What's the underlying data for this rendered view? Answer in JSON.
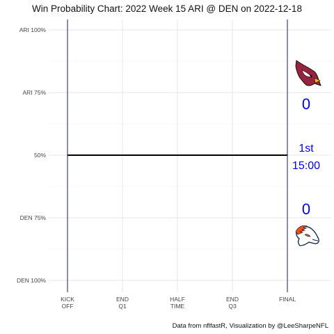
{
  "chart_data": {
    "type": "line",
    "title": "Win Probability Chart: 2022 Week 15 ARI @ DEN on 2022-12-18",
    "xlabel": "",
    "ylabel": "",
    "x_ticks": [
      {
        "label": [
          "KICK",
          "OFF"
        ],
        "value": 0
      },
      {
        "label": [
          "END",
          "Q1"
        ],
        "value": 0.25
      },
      {
        "label": [
          "HALF",
          "TIME"
        ],
        "value": 0.5
      },
      {
        "label": [
          "END",
          "Q3"
        ],
        "value": 0.75
      },
      {
        "label": [
          "FINAL"
        ],
        "value": 1
      }
    ],
    "y_ticks": [
      {
        "label": "ARI 100%",
        "value": 1.0
      },
      {
        "label": "ARI 75%",
        "value": 0.75
      },
      {
        "label": "50%",
        "value": 0.5
      },
      {
        "label": "DEN 75%",
        "value": 0.25
      },
      {
        "label": "DEN 100%",
        "value": 0.0
      }
    ],
    "xlim": [
      0,
      1
    ],
    "ylim": [
      0,
      1
    ],
    "grid": true,
    "series": [
      {
        "x": [
          0,
          1
        ],
        "y": [
          0.5,
          0.5
        ],
        "color": "#000000"
      }
    ],
    "annotations": {
      "away_score": "0",
      "home_score": "0",
      "quarter": "1st",
      "clock": "15:00",
      "text_color": "#0000ee"
    },
    "team_logos": {
      "away": "cardinals-logo",
      "home": "broncos-logo"
    },
    "caption": "Data from nflfastR, Visualization by @LeeSharpeNFL"
  }
}
